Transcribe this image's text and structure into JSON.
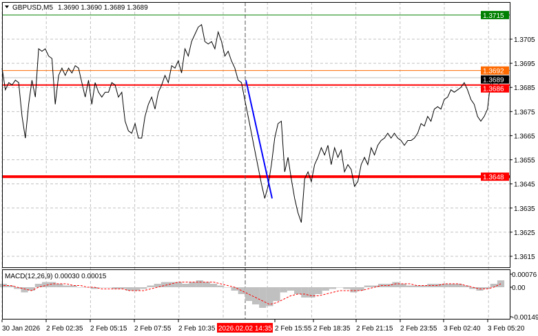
{
  "header": {
    "symbol": "GBPUSD,M5",
    "ohlc": "1.3690 1.3690 1.3689 1.3689"
  },
  "colors": {
    "price_line": "#000000",
    "resistance_green": "#008000",
    "level_red": "#ff0000",
    "level_orange": "#ff6a00",
    "trend_blue": "#0000ff",
    "macd_hist": "#c0c0c0",
    "macd_signal": "#ff0000",
    "time_highlight": "#ff0000"
  },
  "chart_data": [
    {
      "type": "line",
      "title": "GBPUSD,M5",
      "yticks": [
        "1.3705",
        "1.3695",
        "1.3685",
        "1.3675",
        "1.3665",
        "1.3655",
        "1.3645",
        "1.3635",
        "1.3625",
        "1.3615"
      ],
      "ylim": [
        1.3611,
        1.372
      ],
      "grid": true,
      "levels": [
        {
          "label": "1.3715",
          "value": 1.3715,
          "color": "#008000"
        },
        {
          "label": "1.3692",
          "value": 1.3692,
          "color": "#ff6a00"
        },
        {
          "label": "1.3689",
          "value": 1.3689,
          "color": "#000000"
        },
        {
          "label": "1.3686",
          "value": 1.3686,
          "color": "#ff0000"
        },
        {
          "label": "1.3648",
          "value": 1.3648,
          "color": "#ff0000"
        }
      ],
      "close": [
        1.3693,
        1.3684,
        1.3687,
        1.3686,
        1.3688,
        1.3687,
        1.3673,
        1.3664,
        1.3678,
        1.3688,
        1.3681,
        1.3701,
        1.37,
        1.3701,
        1.3698,
        1.3697,
        1.3678,
        1.369,
        1.3693,
        1.369,
        1.3693,
        1.3691,
        1.3694,
        1.3693,
        1.3687,
        1.3681,
        1.3688,
        1.3678,
        1.3687,
        1.3683,
        1.3681,
        1.3683,
        1.3683,
        1.3687,
        1.3686,
        1.3681,
        1.3683,
        1.3671,
        1.3667,
        1.3666,
        1.367,
        1.3664,
        1.3664,
        1.3673,
        1.3678,
        1.3681,
        1.3676,
        1.3683,
        1.3686,
        1.369,
        1.3687,
        1.3694,
        1.3693,
        1.3696,
        1.3691,
        1.3701,
        1.3698,
        1.3704,
        1.3707,
        1.371,
        1.3711,
        1.3704,
        1.3703,
        1.3704,
        1.3701,
        1.3708,
        1.3704,
        1.3698,
        1.37,
        1.3696,
        1.3693,
        1.3688,
        1.3687,
        1.368,
        1.3673,
        1.3666,
        1.3659,
        1.3652,
        1.3645,
        1.3639,
        1.3644,
        1.3653,
        1.3664,
        1.367,
        1.3671,
        1.365,
        1.3656,
        1.3647,
        1.3639,
        1.3633,
        1.3629,
        1.3647,
        1.365,
        1.3646,
        1.3653,
        1.3656,
        1.366,
        1.3657,
        1.3661,
        1.3653,
        1.366,
        1.3656,
        1.3659,
        1.365,
        1.3653,
        1.3651,
        1.3644,
        1.3646,
        1.3653,
        1.3656,
        1.3653,
        1.366,
        1.3657,
        1.3661,
        1.3663,
        1.3664,
        1.3666,
        1.3664,
        1.3666,
        1.3664,
        1.3663,
        1.3661,
        1.3663,
        1.3663,
        1.3664,
        1.3666,
        1.367,
        1.3669,
        1.3673,
        1.3671,
        1.3676,
        1.3677,
        1.3676,
        1.368,
        1.3681,
        1.3684,
        1.3683,
        1.3684,
        1.3685,
        1.3687,
        1.3684,
        1.368,
        1.3678,
        1.3673,
        1.3671,
        1.3673,
        1.3676,
        1.3688,
        1.3685,
        1.3685,
        1.3689
      ],
      "trendline": {
        "from": 1.3688,
        "to": 1.3639,
        "color": "#0000ff"
      },
      "event_time": "2026.02.02 14:35"
    },
    {
      "type": "bar",
      "title": "MACD(12,26,9) 0.00030 0.00015",
      "yticks": [
        "0.00076",
        "0.00",
        "-0.00149"
      ],
      "ylim": [
        -0.00149,
        0.00076
      ],
      "histogram": [
        0.0002,
        0.0001,
        -0.0001,
        -0.0003,
        -0.0002,
        0.0002,
        0.0003,
        0.0003,
        0.0002,
        0.0001,
        0.0001,
        0.0,
        0.0,
        -0.0001,
        0.0,
        0.0,
        -0.0001,
        -0.0001,
        -0.0002,
        -0.0002,
        -0.0001,
        0.0001,
        0.0002,
        0.0003,
        0.0003,
        0.0003,
        0.0002,
        0.0003,
        0.0004,
        0.0003,
        0.0002,
        0.0001,
        0.0,
        -0.0002,
        -0.0004,
        -0.0008,
        -0.001,
        -0.0012,
        -0.0011,
        -0.0008,
        -0.0003,
        -0.0002,
        -0.0004,
        -0.0006,
        -0.0006,
        -0.0004,
        -0.0002,
        -0.0001,
        0.0,
        -0.0001,
        -0.0003,
        -0.0002,
        0.0001,
        0.0001,
        0.0002,
        0.0002,
        0.0003,
        0.0002,
        0.0001,
        0.0001,
        0.0001,
        0.0002,
        0.0002,
        0.0002,
        0.0002,
        0.0002,
        0.0001,
        -0.0001,
        -0.0002,
        -0.0001,
        0.0002,
        0.0004
      ],
      "signal": [
        0.0001,
        0.0001,
        0.0,
        -0.0001,
        -0.0002,
        0.0,
        0.0001,
        0.0002,
        0.0002,
        0.0002,
        0.0001,
        0.0001,
        0.0,
        0.0,
        -0.0001,
        -0.0001,
        -0.0001,
        -0.0001,
        -0.0002,
        -0.0002,
        -0.0002,
        -0.0001,
        0.0,
        0.0001,
        0.0002,
        0.0003,
        0.0003,
        0.0003,
        0.0003,
        0.0003,
        0.0003,
        0.0002,
        0.0001,
        0.0,
        -0.0002,
        -0.0004,
        -0.0006,
        -0.0008,
        -0.001,
        -0.0009,
        -0.0007,
        -0.0005,
        -0.0004,
        -0.0004,
        -0.0005,
        -0.0005,
        -0.0004,
        -0.0003,
        -0.0002,
        -0.0002,
        -0.0002,
        -0.0002,
        -0.0001,
        0.0,
        0.0001,
        0.0001,
        0.0002,
        0.0002,
        0.0002,
        0.0001,
        0.0001,
        0.0001,
        0.0001,
        0.0002,
        0.0002,
        0.0002,
        0.0001,
        0.0,
        -0.0001,
        -0.0001,
        0.0,
        0.0002
      ]
    }
  ],
  "time_axis": {
    "labels": [
      "30 Jan 2026",
      "2 Feb 02:35",
      "2 Feb 05:15",
      "2 Feb 07:55",
      "2 Feb 10:35",
      "2 Feb 15:55",
      "2 Feb 18:35",
      "2 Feb 21:15",
      "2 Feb 23:55",
      "3 Feb 02:40",
      "3 Feb 05:20"
    ],
    "highlight": "2026.02.02 14:35"
  }
}
